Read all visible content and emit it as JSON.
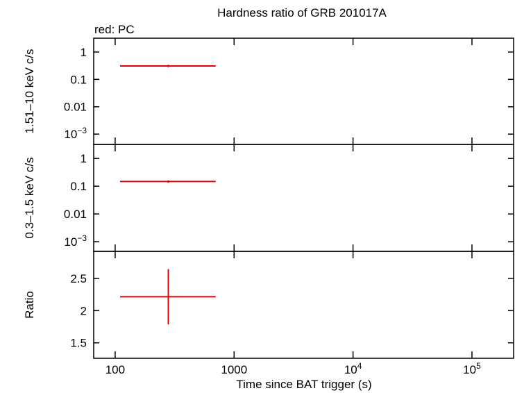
{
  "chart_data": [
    {
      "type": "errorbar",
      "title": "Hardness ratio of GRB 201017A",
      "annotation": "red: PC",
      "ylabel": "1.51–10 keV c/s",
      "log_x": true,
      "log_y": true,
      "xlim": [
        66,
        224000
      ],
      "ylim": [
        0.00042,
        3.2
      ],
      "yticks": [
        1,
        0.1,
        0.01,
        {
          "value": 0.001,
          "label": "10",
          "exponent": "−3"
        }
      ],
      "series": [
        {
          "color": "#e00000",
          "x": [
            280
          ],
          "x_err_minus": [
            170
          ],
          "x_err_plus": [
            420
          ],
          "values": [
            0.31
          ],
          "y_err": [
            0.03
          ]
        }
      ]
    },
    {
      "type": "errorbar",
      "ylabel": "0.3–1.5 keV c/s",
      "log_x": true,
      "log_y": true,
      "xlim": [
        66,
        224000
      ],
      "ylim": [
        0.00045,
        3.2
      ],
      "yticks": [
        1,
        0.1,
        0.01,
        {
          "value": 0.001,
          "label": "10",
          "exponent": "−3"
        }
      ],
      "series": [
        {
          "color": "#e00000",
          "x": [
            280
          ],
          "x_err_minus": [
            170
          ],
          "x_err_plus": [
            420
          ],
          "values": [
            0.148
          ],
          "y_err": [
            0.015
          ]
        }
      ]
    },
    {
      "type": "errorbar",
      "ylabel": "Ratio",
      "xlabel": "Time since BAT trigger (s)",
      "log_x": true,
      "log_y": false,
      "xlim": [
        66,
        224000
      ],
      "ylim": [
        1.26,
        2.92
      ],
      "xticks": [
        100,
        1000,
        {
          "value": 10000,
          "label": "10",
          "exponent": "4"
        },
        {
          "value": 100000,
          "label": "10",
          "exponent": "5"
        }
      ],
      "yticks": [
        2.5,
        2,
        1.5
      ],
      "series": [
        {
          "color": "#e00000",
          "x": [
            280
          ],
          "x_err_minus": [
            170
          ],
          "x_err_plus": [
            420
          ],
          "values": [
            2.215
          ],
          "y_err": [
            0.43
          ]
        }
      ]
    }
  ]
}
